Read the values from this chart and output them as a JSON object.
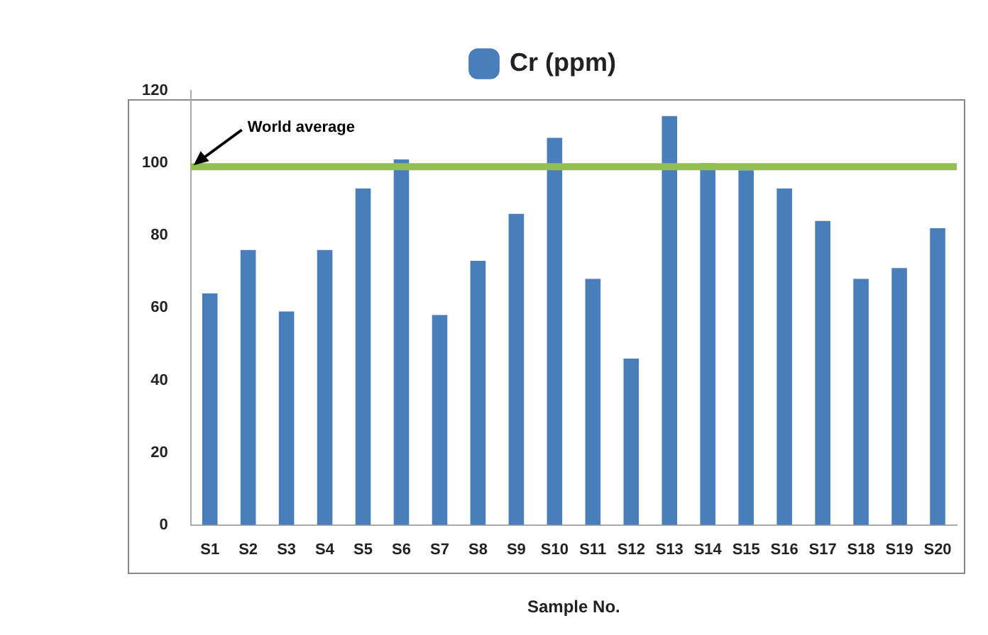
{
  "chart_data": {
    "type": "bar",
    "xlabel": "Sample No.",
    "categories": [
      "S1",
      "S2",
      "S3",
      "S4",
      "S5",
      "S6",
      "S7",
      "S8",
      "S9",
      "S10",
      "S11",
      "S12",
      "S13",
      "S14",
      "S15",
      "S16",
      "S17",
      "S18",
      "S19",
      "S20"
    ],
    "series": [
      {
        "name": "Cr (ppm)",
        "color": "#4a7ebb",
        "values": [
          64,
          76,
          59,
          76,
          93,
          101,
          58,
          73,
          86,
          107,
          68,
          46,
          113,
          100,
          98,
          93,
          84,
          68,
          71,
          82
        ]
      }
    ],
    "ylim": [
      0,
      120
    ],
    "yticks": [
      0,
      20,
      40,
      60,
      80,
      100,
      120
    ],
    "grid": false,
    "legend": "top",
    "ref_lines": [
      {
        "axis": "y",
        "value": 99,
        "label": "World average",
        "color": "#92c050"
      }
    ]
  }
}
